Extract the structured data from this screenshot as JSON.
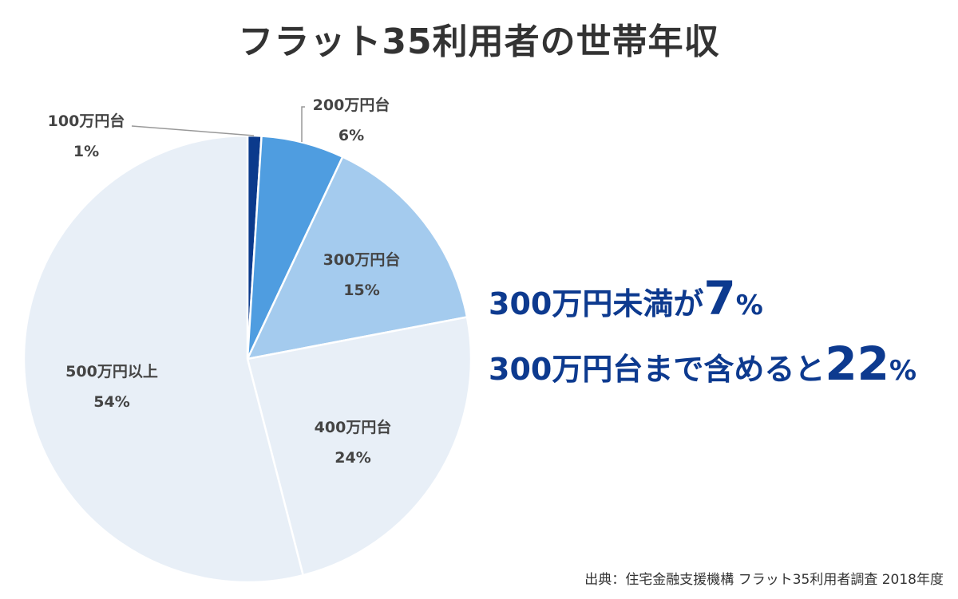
{
  "chart_data": {
    "type": "pie",
    "title": "フラット35利用者の世帯年収",
    "slices": [
      {
        "label": "100万円台",
        "value": 1,
        "value_label": "1%",
        "color": "#0b3a8c"
      },
      {
        "label": "200万円台",
        "value": 6,
        "value_label": "6%",
        "color": "#4f9de0"
      },
      {
        "label": "300万円台",
        "value": 15,
        "value_label": "15%",
        "color": "#a4cbee"
      },
      {
        "label": "400万円台",
        "value": 24,
        "value_label": "24%",
        "color": "#e8eff7"
      },
      {
        "label": "500万円以上",
        "value": 54,
        "value_label": "54%",
        "color": "#e8eff7"
      }
    ],
    "start_angle_deg": 0,
    "direction": "clockwise"
  },
  "headline": {
    "line1_text": "300万円未満が",
    "line1_num": "7",
    "line1_pct": "%",
    "line2_text": "300万円台まで含めると",
    "line2_num": "22",
    "line2_pct": "%"
  },
  "source_note": "出典：住宅金融支援機構 フラット35利用者調査 2018年度"
}
